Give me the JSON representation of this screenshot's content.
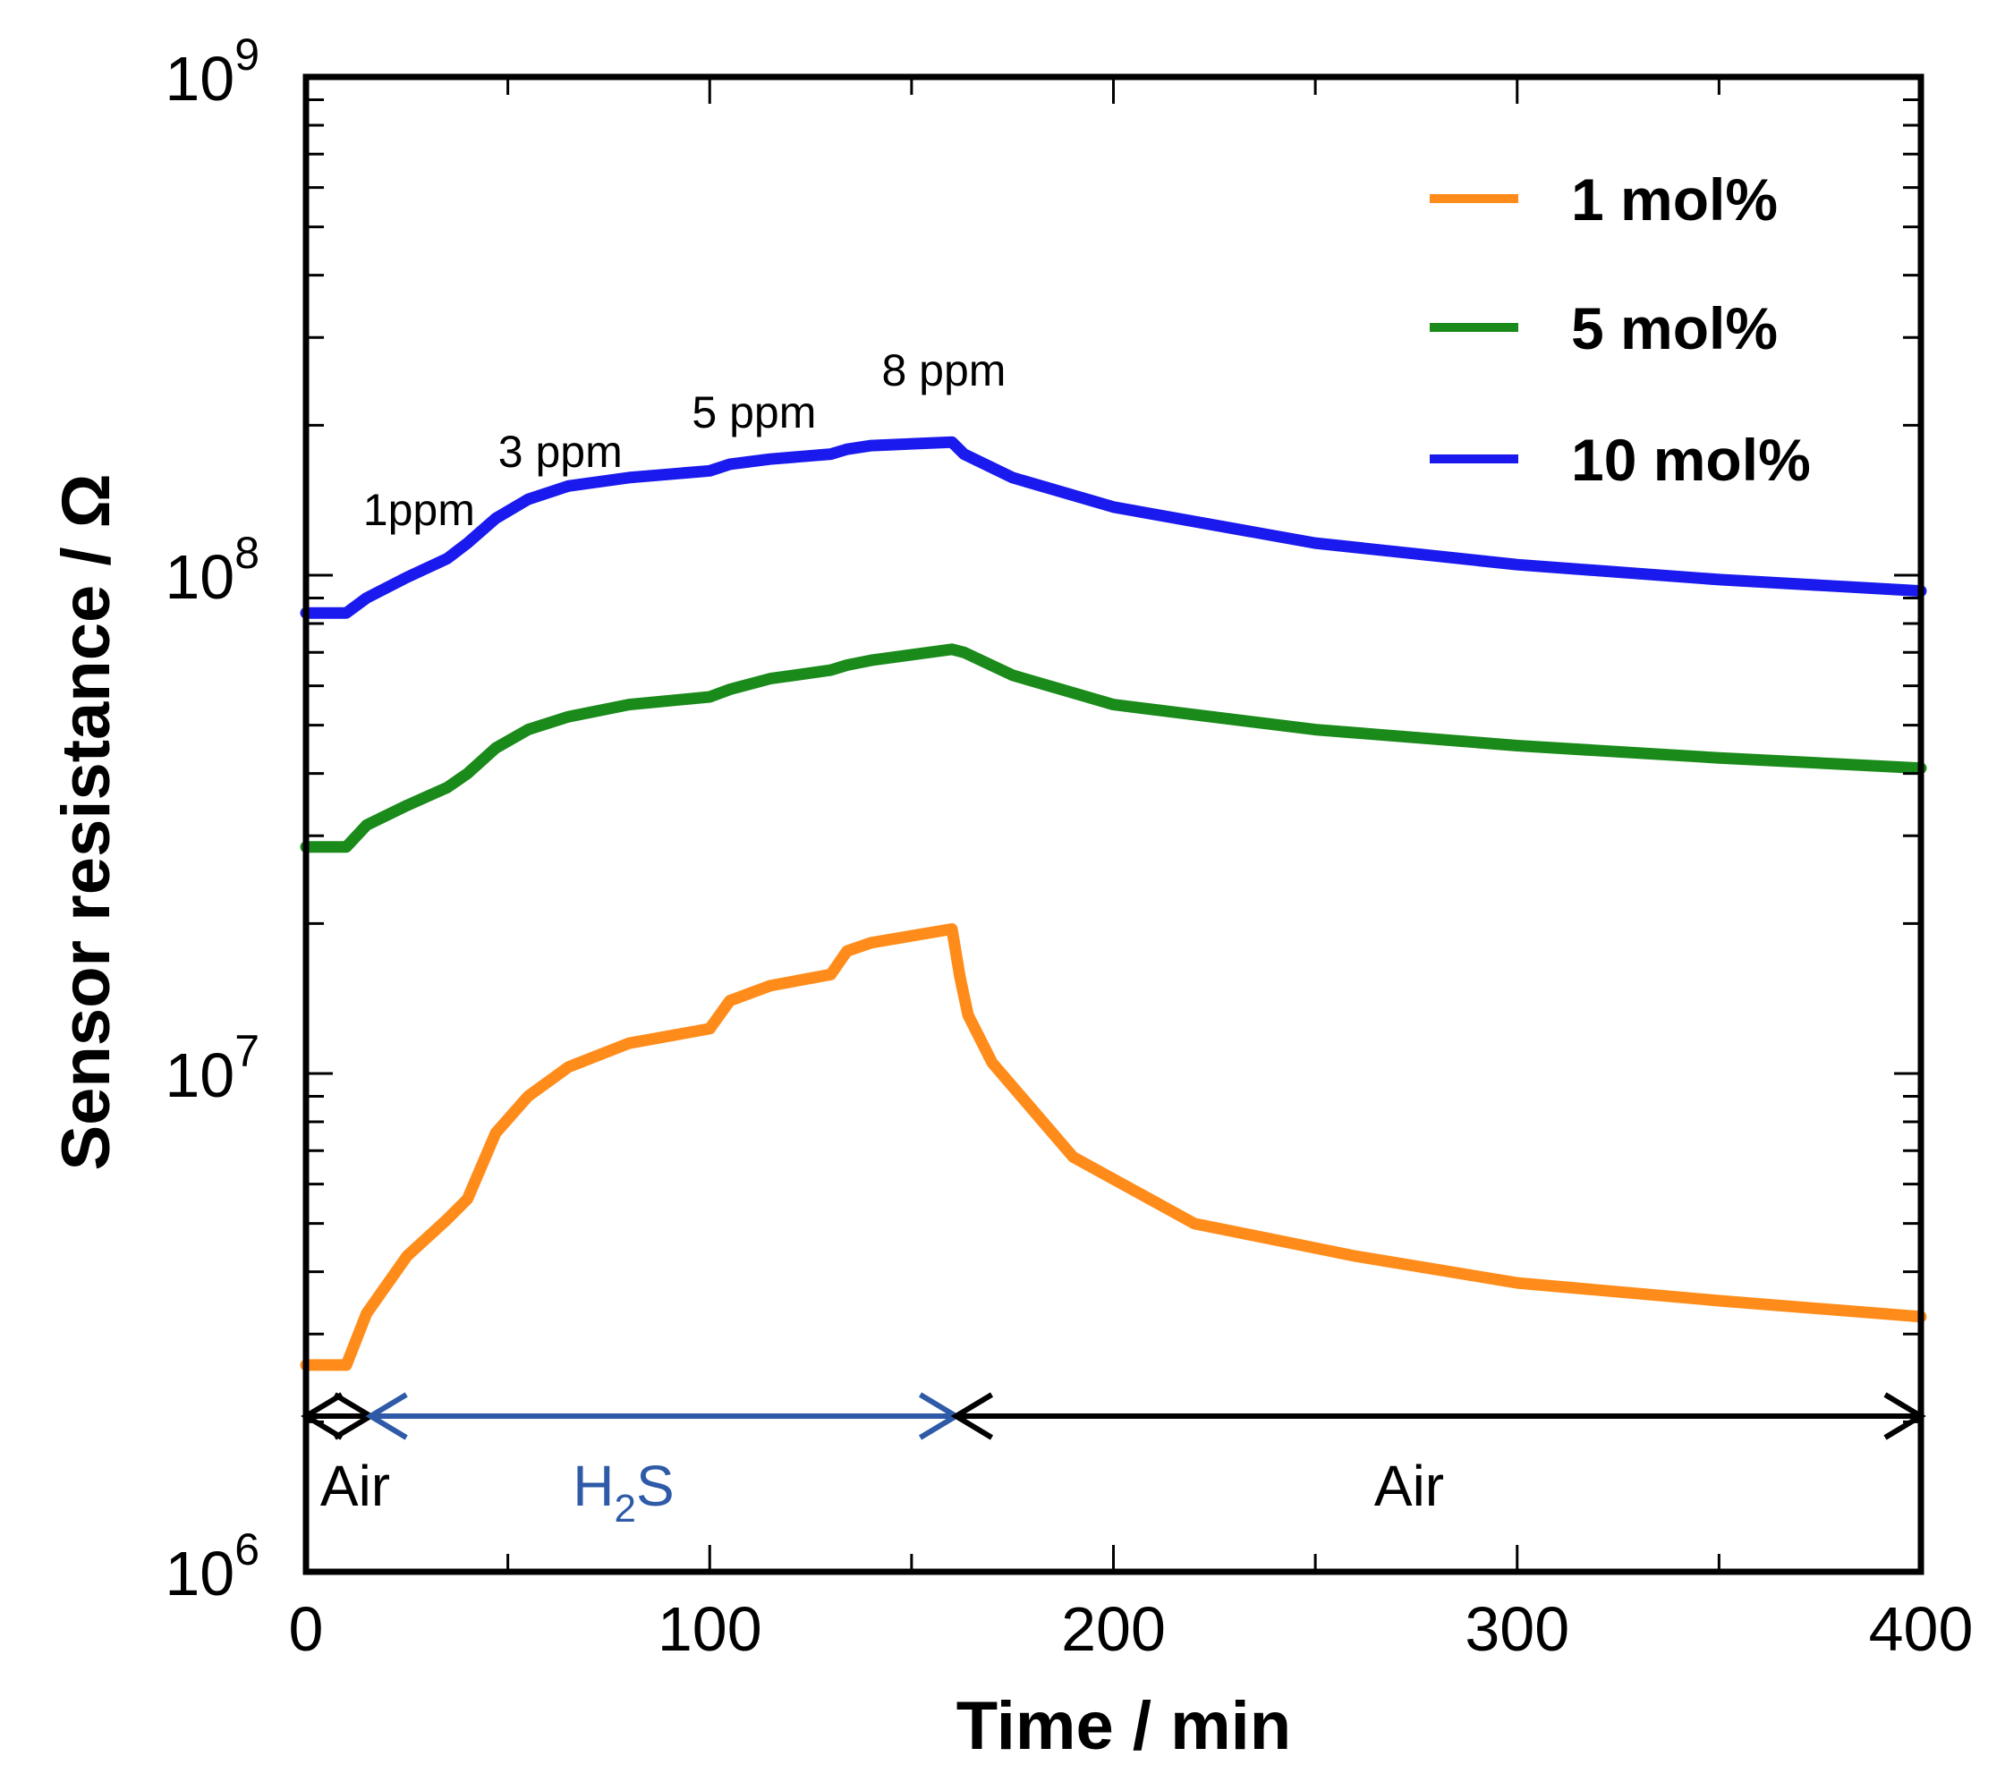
{
  "chart_data": {
    "type": "line",
    "xlabel": "Time / min",
    "ylabel": "Sensor resistance / Ω",
    "xlim": [
      0,
      400
    ],
    "ylim": [
      1000000,
      1000000000
    ],
    "yscale": "log",
    "grid": false,
    "legend_position": "top-right",
    "x_ticks": [
      {
        "value": 0,
        "label": "0"
      },
      {
        "value": 100,
        "label": "100"
      },
      {
        "value": 200,
        "label": "200"
      },
      {
        "value": 300,
        "label": "300"
      },
      {
        "value": 400,
        "label": "400"
      }
    ],
    "y_ticks": [
      {
        "value": 1000000,
        "base": "10",
        "exp": "6"
      },
      {
        "value": 10000000,
        "base": "10",
        "exp": "7"
      },
      {
        "value": 100000000,
        "base": "10",
        "exp": "8"
      },
      {
        "value": 1000000000,
        "base": "10",
        "exp": "9"
      }
    ],
    "series": [
      {
        "name": "1 mol%",
        "color": "#ff8c1a",
        "x": [
          0,
          10,
          15,
          25,
          35,
          40,
          47,
          55,
          65,
          80,
          100,
          105,
          115,
          130,
          134,
          140,
          160,
          162,
          164,
          170,
          190,
          220,
          260,
          300,
          350,
          400
        ],
        "y": [
          2600000,
          2600000,
          3300000,
          4300000,
          5100000,
          5600000,
          7600000,
          9000000,
          10300000,
          11500000,
          12300000,
          14000000,
          15000000,
          15800000,
          17600000,
          18300000,
          19500000,
          15600000,
          13100000,
          10500000,
          6800000,
          5000000,
          4300000,
          3800000,
          3500000,
          3250000
        ]
      },
      {
        "name": "5 mol%",
        "color": "#1a8a1a",
        "x": [
          0,
          10,
          15,
          25,
          35,
          40,
          47,
          55,
          65,
          80,
          100,
          105,
          115,
          130,
          134,
          140,
          160,
          163,
          175,
          200,
          250,
          300,
          350,
          400
        ],
        "y": [
          28500000,
          28500000,
          31500000,
          34500000,
          37500000,
          40000000,
          45000000,
          49000000,
          52000000,
          55000000,
          57000000,
          59000000,
          62000000,
          64500000,
          66000000,
          67500000,
          71000000,
          70000000,
          63000000,
          55000000,
          49000000,
          45500000,
          43000000,
          41000000
        ]
      },
      {
        "name": "10 mol%",
        "color": "#1a1aee",
        "x": [
          0,
          10,
          15,
          25,
          35,
          40,
          47,
          55,
          65,
          80,
          100,
          105,
          115,
          130,
          134,
          140,
          160,
          163,
          175,
          200,
          250,
          300,
          350,
          400
        ],
        "y": [
          84000000,
          84000000,
          90000000,
          99000000,
          108000000,
          116000000,
          130000000,
          142000000,
          151000000,
          157000000,
          162000000,
          167000000,
          171000000,
          175000000,
          179000000,
          182000000,
          185000000,
          175000000,
          157000000,
          137000000,
          116000000,
          105000000,
          98000000,
          93000000
        ]
      }
    ],
    "concentration_labels": [
      {
        "text": "1ppm",
        "x": 28,
        "y": 126000000
      },
      {
        "text": "3 ppm",
        "x": 63,
        "y": 165000000
      },
      {
        "text": "5 ppm",
        "x": 111,
        "y": 198000000
      },
      {
        "text": "8 ppm",
        "x": 158,
        "y": 240000000
      }
    ],
    "phases": [
      {
        "label": "Air",
        "sub": "",
        "start": 0,
        "end": 16,
        "color": "#000000"
      },
      {
        "label": "H",
        "sub": "2",
        "tail": "S",
        "start": 16,
        "end": 161,
        "color": "#2e5aa7"
      },
      {
        "label": "Air",
        "sub": "",
        "start": 161,
        "end": 400,
        "color": "#000000"
      }
    ]
  }
}
